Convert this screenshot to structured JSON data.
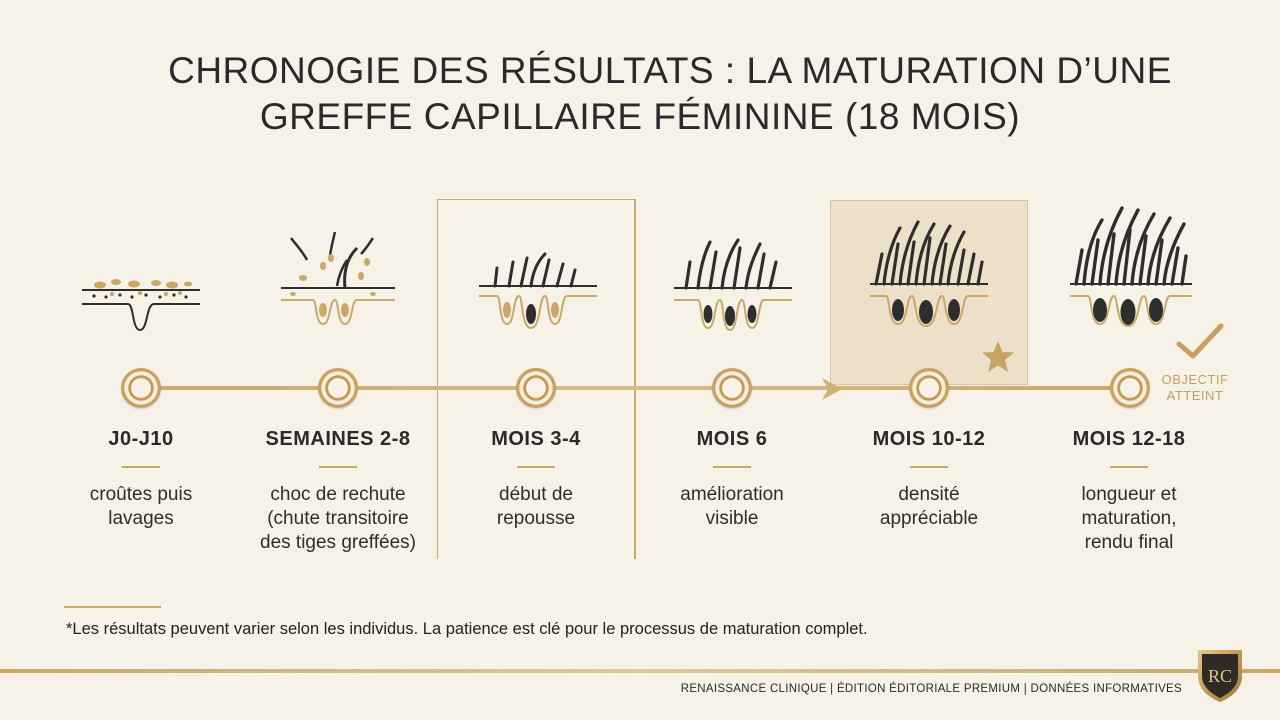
{
  "title": {
    "line1": "CHRONOGIE  DES  RÉSULTATS : LA MATURATION  D’UNE",
    "line2": "GREFFE CAPILLAIRE FÉMININE (18 MOIS)"
  },
  "stages": [
    {
      "label": "J0-J10",
      "desc": [
        "croûtes puis",
        "lavages"
      ],
      "icon": "scalp-crusts-icon"
    },
    {
      "label": "SEMAINES 2-8",
      "desc": [
        "choc de rechute",
        "(chute transitoire",
        "des tiges greffées)"
      ],
      "icon": "hair-shedding-icon"
    },
    {
      "label": "MOIS 3-4",
      "desc": [
        "début de",
        "repousse"
      ],
      "icon": "hair-regrowth-icon"
    },
    {
      "label": "MOIS 6",
      "desc": [
        "amélioration",
        "visible"
      ],
      "icon": "hair-improvement-icon"
    },
    {
      "label": "MOIS 10-12",
      "desc": [
        "densité",
        "appréciable"
      ],
      "icon": "hair-density-icon"
    },
    {
      "label": "MOIS 12-18",
      "desc": [
        "longueur et",
        "maturation,",
        "rendu final"
      ],
      "icon": "hair-final-icon"
    }
  ],
  "goal": {
    "line1": "OBJECTIF",
    "line2": "ATTEINT"
  },
  "footnote": "*Les résultats peuvent varier selon les individus. La patience est clé pour le processus de maturation complet.",
  "brand": "RENAISSANCE CLINIQUE | ÉDITION ÉDITORIALE PREMIUM | DONNÉES INFORMATIVES",
  "crest_monogram": "RC",
  "colors": {
    "gold": "#c9a86a",
    "background": "#f7f2e8",
    "highlight": "#ece0c9",
    "hair": "#2e2e2e"
  }
}
